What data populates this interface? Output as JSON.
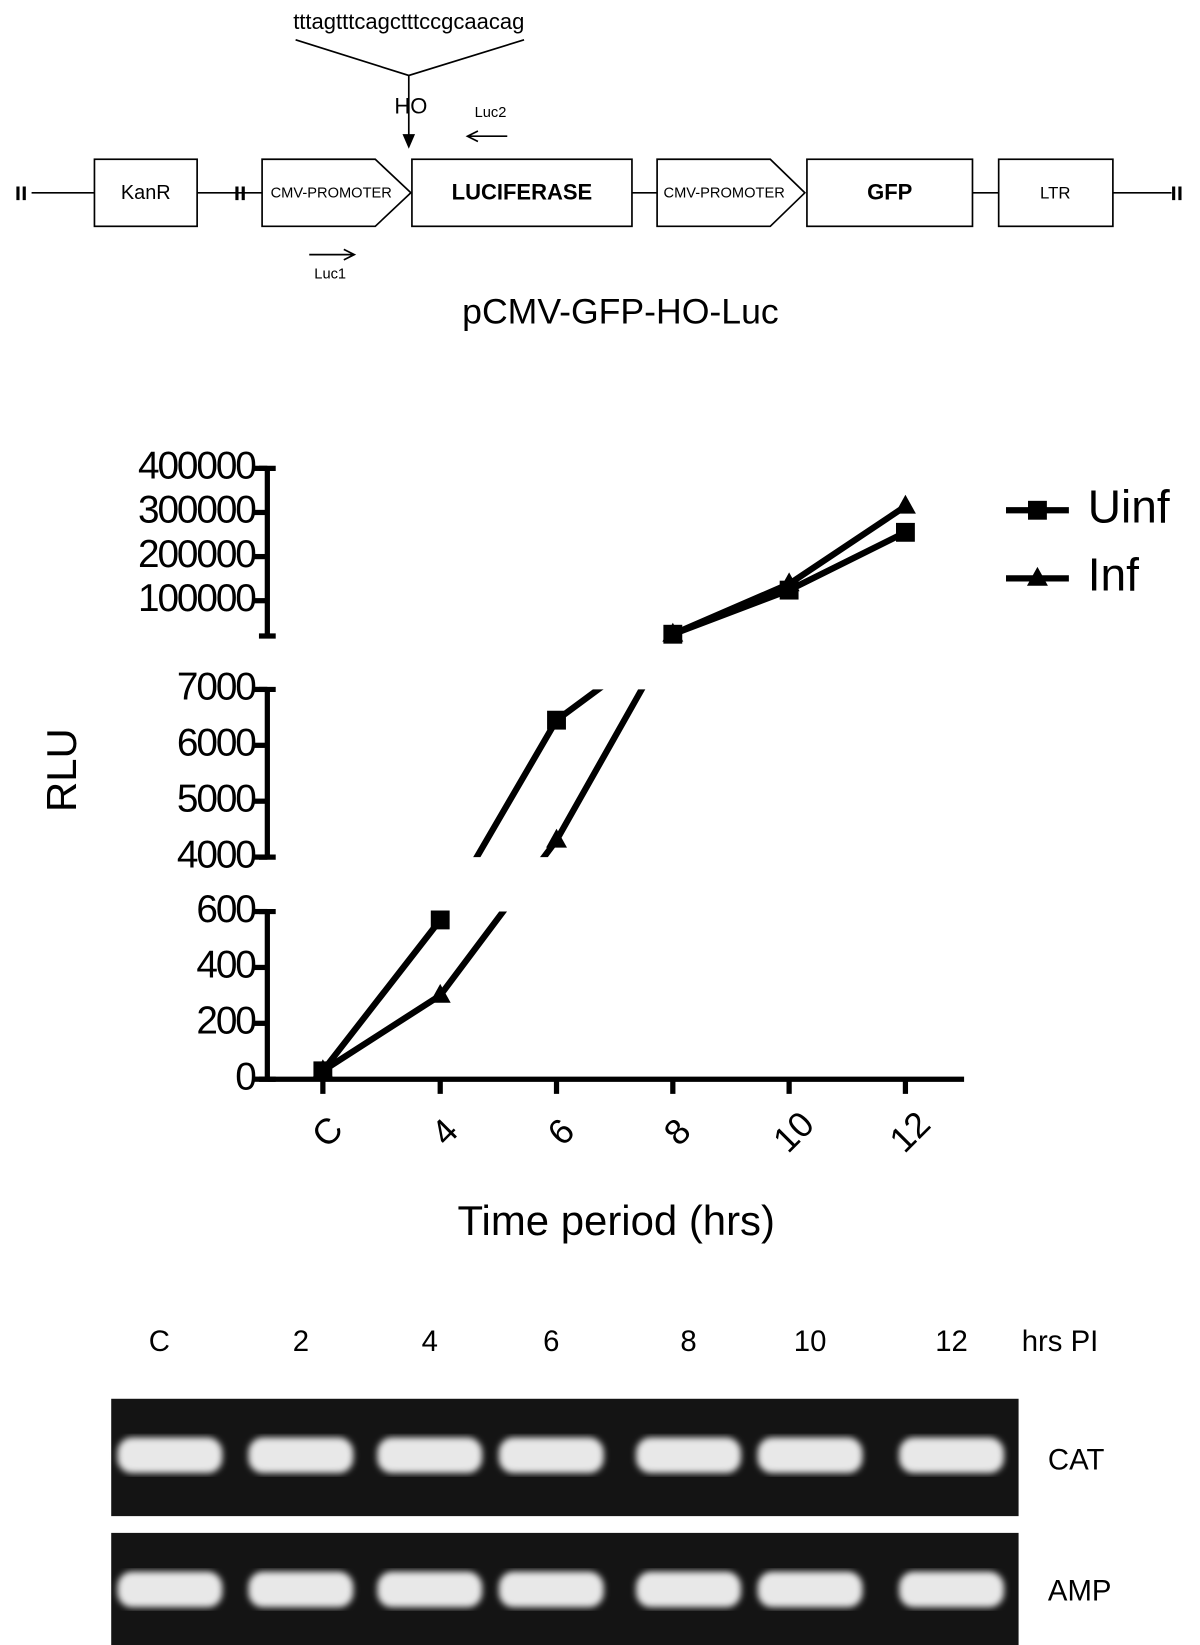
{
  "diagram": {
    "sequence": "tttagtttcagctttccgcaacag",
    "site": "HO",
    "primers": [
      "Luc1",
      "Luc2"
    ],
    "elements": [
      "KanR",
      "CMV-PROMOTER",
      "LUCIFERASE",
      "CMV-PROMOTER",
      "GFP",
      "LTR"
    ],
    "title": "pCMV-GFP-HO-Luc"
  },
  "chart_data": {
    "type": "line",
    "ylabel": "RLU",
    "xlabel": "Time period (hrs)",
    "categories": [
      "C",
      "4",
      "6",
      "8",
      "10",
      "12"
    ],
    "y_segments": [
      {
        "ylim": [
          0,
          600
        ],
        "yticks": [
          0,
          200,
          400,
          600
        ]
      },
      {
        "ylim": [
          4000,
          7000
        ],
        "yticks": [
          4000,
          5000,
          6000,
          7000
        ]
      },
      {
        "ylim": [
          20000,
          400000
        ],
        "yticks": [
          100000,
          200000,
          300000,
          400000
        ]
      }
    ],
    "series": [
      {
        "name": "Uinf",
        "marker": "square",
        "color": "#000000",
        "values": [
          30,
          570,
          6450,
          24000,
          124000,
          255000
        ]
      },
      {
        "name": "Inf",
        "marker": "triangle",
        "color": "#000000",
        "values": [
          30,
          300,
          4300,
          24000,
          138000,
          314000
        ]
      }
    ],
    "legend": "upper right"
  },
  "gel": {
    "lanes": [
      "C",
      "2",
      "4",
      "6",
      "8",
      "10",
      "12"
    ],
    "unit": "hrs PI",
    "rows": [
      "CAT",
      "AMP"
    ]
  }
}
